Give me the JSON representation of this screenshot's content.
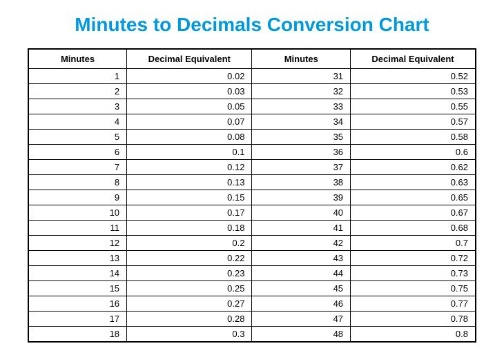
{
  "title": "Minutes to Decimals Conversion Chart",
  "columns": [
    "Minutes",
    "Decimal Equivalent",
    "Minutes",
    "Decimal Equivalent"
  ],
  "rows": [
    [
      "1",
      "0.02",
      "31",
      "0.52"
    ],
    [
      "2",
      "0.03",
      "32",
      "0.53"
    ],
    [
      "3",
      "0.05",
      "33",
      "0.55"
    ],
    [
      "4",
      "0.07",
      "34",
      "0.57"
    ],
    [
      "5",
      "0.08",
      "35",
      "0.58"
    ],
    [
      "6",
      "0.1",
      "36",
      "0.6"
    ],
    [
      "7",
      "0.12",
      "37",
      "0.62"
    ],
    [
      "8",
      "0.13",
      "38",
      "0.63"
    ],
    [
      "9",
      "0.15",
      "39",
      "0.65"
    ],
    [
      "10",
      "0.17",
      "40",
      "0.67"
    ],
    [
      "11",
      "0.18",
      "41",
      "0.68"
    ],
    [
      "12",
      "0.2",
      "42",
      "0.7"
    ],
    [
      "13",
      "0.22",
      "43",
      "0.72"
    ],
    [
      "14",
      "0.23",
      "44",
      "0.73"
    ],
    [
      "15",
      "0.25",
      "45",
      "0.75"
    ],
    [
      "16",
      "0.27",
      "46",
      "0.77"
    ],
    [
      "17",
      "0.28",
      "47",
      "0.78"
    ],
    [
      "18",
      "0.3",
      "48",
      "0.8"
    ]
  ],
  "styling": {
    "title_color": "#0099dd",
    "title_fontsize": 28,
    "border_color": "#000000",
    "background_color": "#ffffff",
    "header_fontsize": 13,
    "cell_fontsize": 13,
    "cell_align": "right",
    "header_align": "center"
  }
}
